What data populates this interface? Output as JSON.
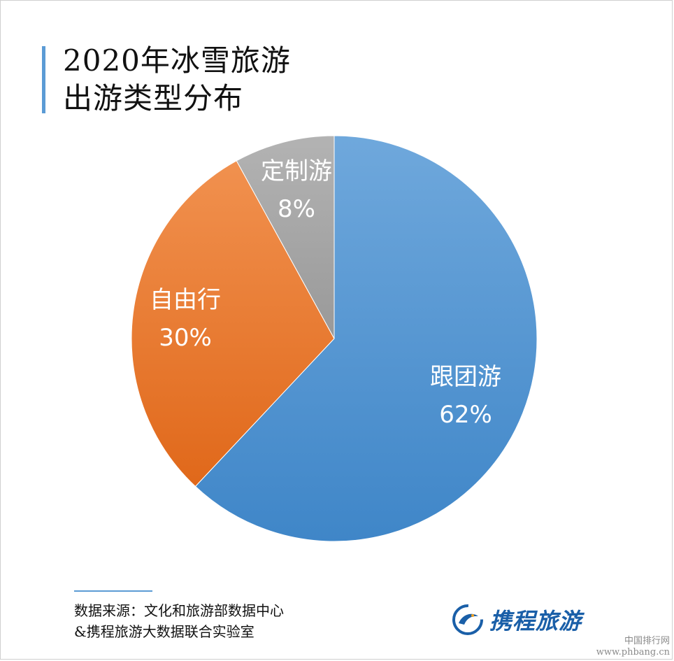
{
  "title_lines": [
    "2020年冰雪旅游",
    "出游类型分布"
  ],
  "chart_data": {
    "type": "pie",
    "title": "2020年冰雪旅游出游类型分布",
    "slices": [
      {
        "label": "跟团游",
        "value": 62,
        "value_label": "62%",
        "color": "#5b9bd5"
      },
      {
        "label": "自由行",
        "value": 30,
        "value_label": "30%",
        "color": "#ed7d31"
      },
      {
        "label": "定制游",
        "value": 8,
        "value_label": "8%",
        "color": "#a5a5a5"
      }
    ],
    "start": "12 o'clock",
    "direction": "clockwise"
  },
  "source": {
    "line1": "数据来源：文化和旅游部数据中心",
    "line2": "&携程旅游大数据联合实验室"
  },
  "logo": {
    "text": "携程旅游",
    "icon": "dolphin-logo-icon"
  },
  "watermark": {
    "line1": "中国排行网",
    "line2": "www.phbang.cn"
  },
  "colors": {
    "accent": "#5b9bd5",
    "logo": "#1a5fa8"
  }
}
